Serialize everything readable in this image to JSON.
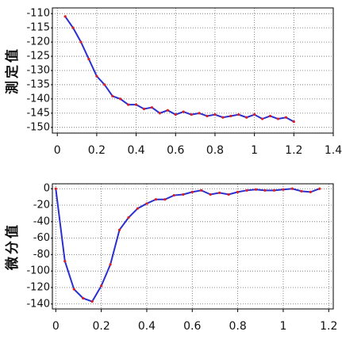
{
  "chart_data": [
    {
      "type": "line",
      "ylabel": "測定值",
      "x": [
        0.04,
        0.08,
        0.12,
        0.16,
        0.2,
        0.24,
        0.28,
        0.32,
        0.36,
        0.4,
        0.44,
        0.48,
        0.52,
        0.56,
        0.6,
        0.64,
        0.68,
        0.72,
        0.76,
        0.8,
        0.84,
        0.88,
        0.92,
        0.96,
        1.0,
        1.04,
        1.08,
        1.12,
        1.16,
        1.2
      ],
      "series": [
        {
          "color": "#2a2fd0",
          "marker_color": "#e02020",
          "values": [
            -111,
            -115,
            -120,
            -126,
            -132,
            -135,
            -139,
            -140,
            -142,
            -142,
            -143.5,
            -143,
            -145,
            -144,
            -145.5,
            -144.5,
            -145.5,
            -145,
            -146,
            -145.5,
            -146.5,
            -146,
            -145.5,
            -146.5,
            -145.5,
            -147,
            -146,
            -147,
            -146.5,
            -148
          ]
        }
      ],
      "xlim": [
        -0.025,
        1.4
      ],
      "xticks": [
        0,
        0.2,
        0.4,
        0.6,
        0.8,
        1,
        1.2,
        1.4
      ],
      "ylim": [
        -152,
        -108
      ],
      "yticks": [
        -110,
        -115,
        -120,
        -125,
        -130,
        -135,
        -140,
        -145,
        -150
      ],
      "grid": true
    },
    {
      "type": "line",
      "ylabel": "微分值",
      "x": [
        0,
        0.04,
        0.08,
        0.12,
        0.16,
        0.2,
        0.24,
        0.28,
        0.32,
        0.36,
        0.4,
        0.44,
        0.48,
        0.52,
        0.56,
        0.6,
        0.64,
        0.68,
        0.72,
        0.76,
        0.8,
        0.84,
        0.88,
        0.92,
        0.96,
        1.0,
        1.04,
        1.08,
        1.12,
        1.16
      ],
      "series": [
        {
          "color": "#2a2fd0",
          "marker_color": "#e02020",
          "values": [
            0,
            -88,
            -122,
            -133,
            -137,
            -118,
            -92,
            -50,
            -35,
            -24,
            -18,
            -13,
            -13,
            -8,
            -7,
            -4,
            -2,
            -7,
            -5,
            -7,
            -4,
            -2,
            -1,
            -2,
            -2,
            -1,
            0,
            -3,
            -4,
            0
          ]
        }
      ],
      "xlim": [
        -0.015,
        1.22
      ],
      "xticks": [
        0,
        0.2,
        0.4,
        0.6,
        0.8,
        1,
        1.2
      ],
      "ylim": [
        -146,
        6
      ],
      "yticks": [
        0,
        -20,
        -40,
        -60,
        -80,
        -100,
        -120,
        -140
      ],
      "grid": true
    }
  ]
}
